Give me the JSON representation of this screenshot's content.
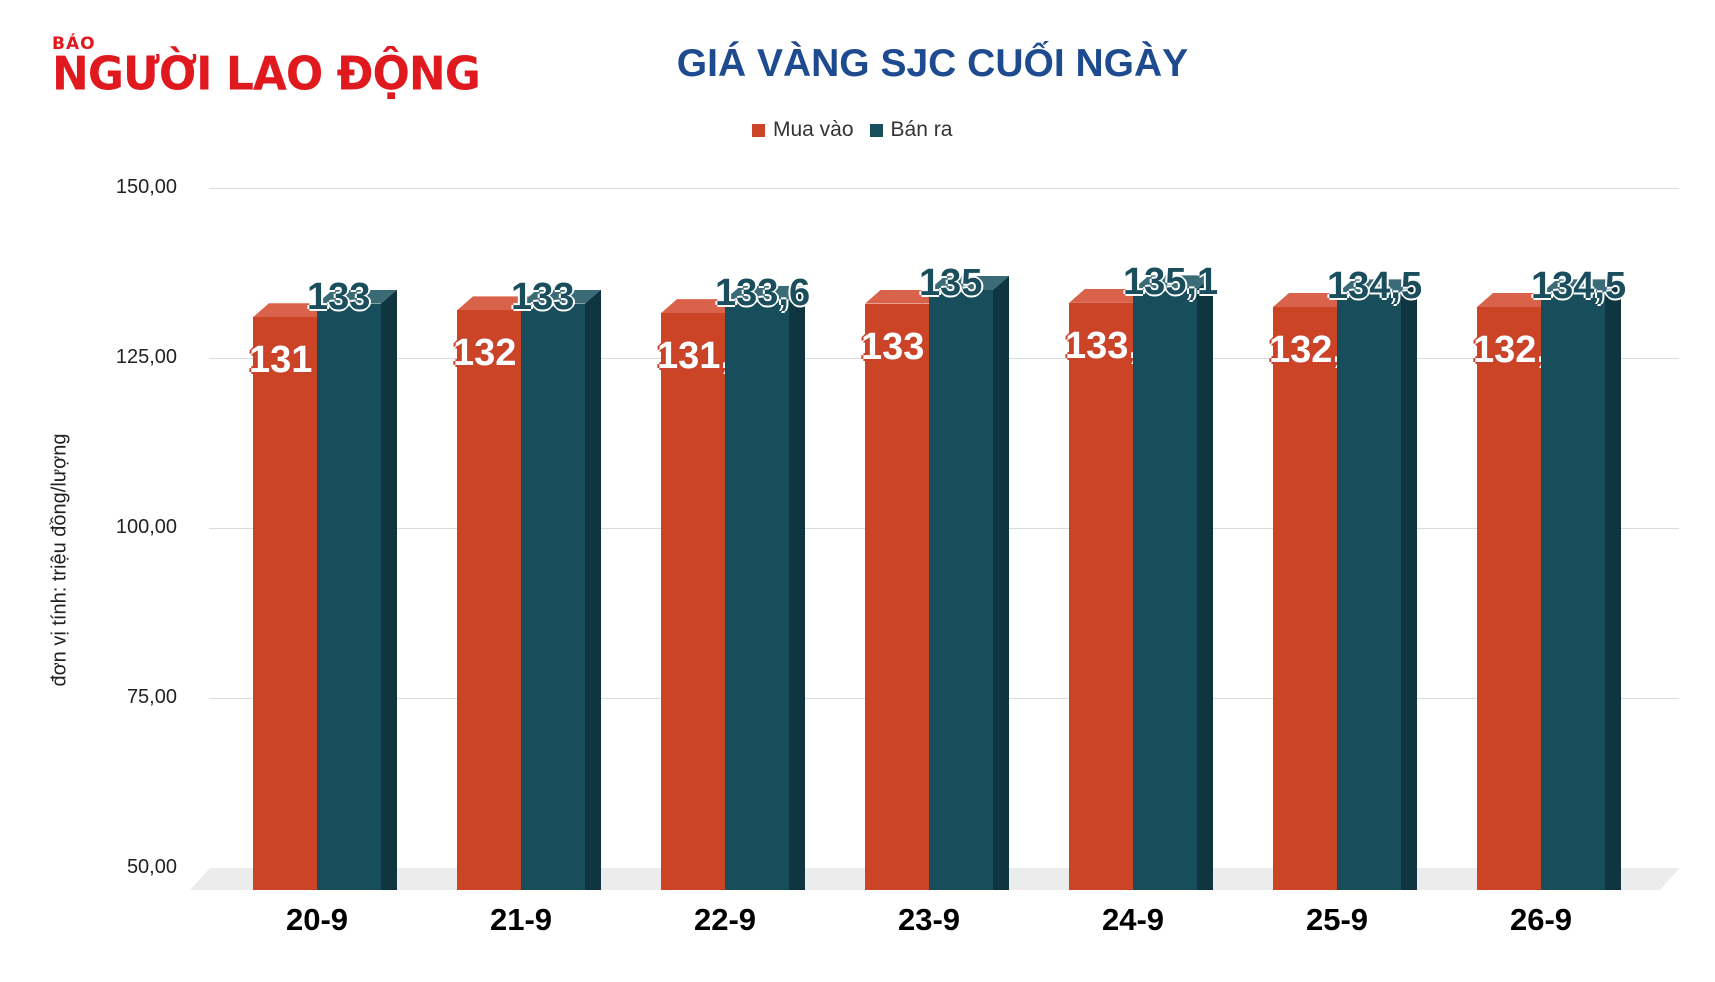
{
  "logo": {
    "small": "BÁO",
    "big": "NGƯỜI LAO ĐỘNG"
  },
  "chart_data": {
    "type": "bar",
    "title": "GIÁ VÀNG SJC CUỐI NGÀY",
    "xlabel": "",
    "ylabel": "đơn vị tính: triệu đồng/lượng",
    "categories": [
      "20-9",
      "21-9",
      "22-9",
      "23-9",
      "24-9",
      "25-9",
      "26-9"
    ],
    "series": [
      {
        "name": "Mua vào",
        "color": "#cc4426",
        "values": [
          131,
          132,
          131.6,
          133,
          133.1,
          132.5,
          132.5
        ],
        "labels": [
          "131",
          "132",
          "131,6",
          "133",
          "133,1",
          "132,5",
          "132,5"
        ]
      },
      {
        "name": "Bán ra",
        "color": "#184e5b",
        "values": [
          133,
          133,
          133.6,
          135,
          135.1,
          134.5,
          134.5
        ],
        "labels": [
          "133",
          "133",
          "133,6",
          "135",
          "135,1",
          "134,5",
          "134,5"
        ]
      }
    ],
    "yticks": [
      "150,00",
      "125,00",
      "100,00",
      "75,00",
      "50,00"
    ],
    "ylim": [
      50,
      150
    ],
    "grid": true,
    "legend_position": "top"
  }
}
